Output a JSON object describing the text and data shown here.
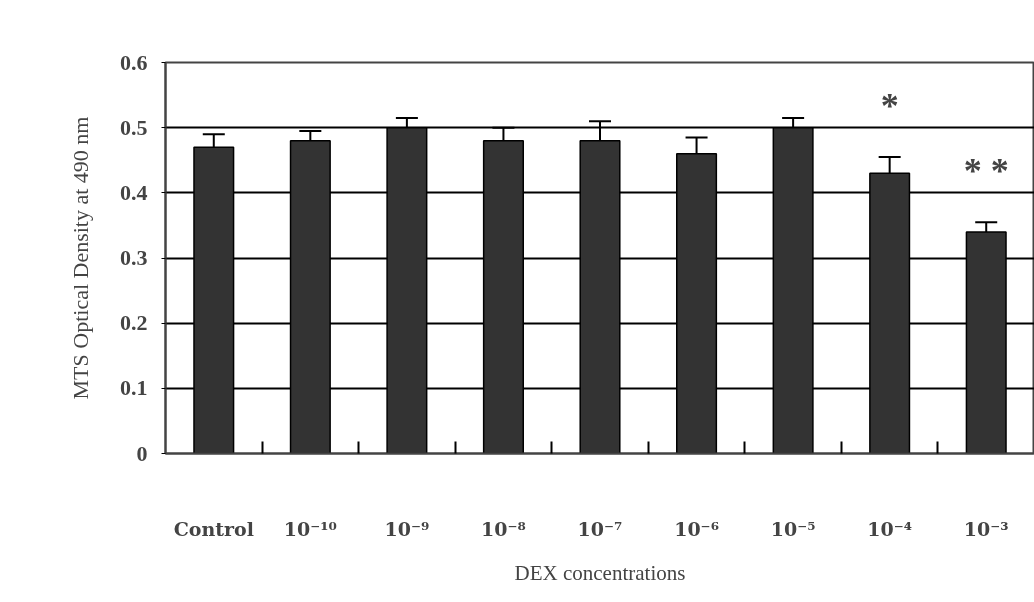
{
  "chart_data": {
    "type": "bar",
    "xlabel": "DEX concentrations",
    "ylabel": "MTS Optical Density at 490 nm",
    "categories": [
      "Control",
      "10⁻¹⁰",
      "10⁻⁹",
      "10⁻⁸",
      "10⁻⁷",
      "10⁻⁶",
      "10⁻⁵",
      "10⁻⁴",
      "10⁻³"
    ],
    "values": [
      0.47,
      0.48,
      0.5,
      0.48,
      0.48,
      0.46,
      0.5,
      0.43,
      0.34
    ],
    "errors": [
      0.02,
      0.015,
      0.015,
      0.02,
      0.03,
      0.025,
      0.015,
      0.025,
      0.015
    ],
    "color": "#333333",
    "ylim": [
      0,
      0.6
    ],
    "yticks": [
      0,
      0.1,
      0.2,
      0.3,
      0.4,
      0.5,
      0.6
    ],
    "grid": "y",
    "annotations": [
      "*",
      "* *"
    ]
  }
}
